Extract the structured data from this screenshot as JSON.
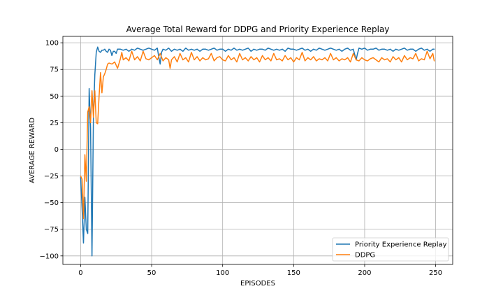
{
  "chart_data": {
    "type": "line",
    "title": "Average Total Reward for DDPG and Priority Experience Replay",
    "xlabel": "EPISODES",
    "ylabel": "AVERAGE REWARD",
    "xlim": [
      -12.5,
      262
    ],
    "ylim": [
      -108,
      106
    ],
    "xticks": [
      0,
      50,
      100,
      150,
      200,
      250
    ],
    "yticks": [
      -100,
      -75,
      -50,
      -25,
      0,
      25,
      50,
      75,
      100
    ],
    "grid": true,
    "legend_position": "lower right",
    "colors": {
      "per": "#1f77b4",
      "ddpg": "#ff7f0e",
      "grid": "#b0b0b0"
    },
    "series": [
      {
        "name": "Priority Experience Replay",
        "color": "#1f77b4",
        "x": [
          0,
          1,
          2,
          3,
          4,
          5,
          6,
          7,
          8,
          9,
          10,
          11,
          12,
          13,
          14,
          15,
          16,
          17,
          18,
          19,
          20,
          21,
          22,
          23,
          24,
          25,
          26,
          28,
          30,
          32,
          34,
          36,
          38,
          40,
          42,
          44,
          46,
          48,
          50,
          52,
          54,
          55,
          56,
          57,
          58,
          60,
          62,
          64,
          66,
          68,
          70,
          72,
          74,
          76,
          78,
          80,
          82,
          84,
          86,
          88,
          90,
          92,
          94,
          96,
          98,
          100,
          102,
          104,
          106,
          108,
          110,
          112,
          114,
          116,
          118,
          120,
          122,
          124,
          126,
          128,
          130,
          132,
          134,
          136,
          138,
          140,
          142,
          144,
          146,
          148,
          150,
          152,
          154,
          156,
          158,
          160,
          162,
          164,
          166,
          168,
          170,
          172,
          174,
          176,
          178,
          180,
          182,
          184,
          186,
          188,
          190,
          192,
          193,
          194,
          195,
          196,
          198,
          200,
          202,
          204,
          206,
          208,
          210,
          212,
          214,
          216,
          218,
          220,
          222,
          224,
          226,
          228,
          230,
          232,
          234,
          236,
          238,
          240,
          242,
          244,
          246,
          248,
          249
        ],
        "y": [
          -26,
          -55,
          -88,
          -45,
          -75,
          -79,
          57,
          20,
          -100,
          30,
          70,
          91,
          96,
          92,
          91,
          93,
          93,
          94,
          92,
          91,
          94,
          93,
          88,
          92,
          92,
          90,
          94,
          94,
          93,
          94,
          92,
          94,
          93,
          95,
          94,
          93,
          94,
          95,
          94,
          93,
          95,
          87,
          80,
          91,
          94,
          93,
          95,
          92,
          94,
          93,
          94,
          92,
          95,
          93,
          94,
          93,
          94,
          92,
          94,
          94,
          93,
          94,
          95,
          93,
          94,
          94,
          92,
          94,
          93,
          95,
          93,
          94,
          93,
          94,
          95,
          92,
          94,
          93,
          94,
          94,
          93,
          95,
          94,
          93,
          94,
          93,
          94,
          92,
          95,
          94,
          94,
          93,
          94,
          95,
          93,
          94,
          92,
          94,
          93,
          95,
          94,
          93,
          94,
          95,
          94,
          93,
          94,
          92,
          94,
          95,
          93,
          94,
          89,
          84,
          90,
          95,
          94,
          95,
          93,
          94,
          94,
          95,
          93,
          94,
          94,
          93,
          94,
          92,
          94,
          93,
          94,
          95,
          93,
          94,
          94,
          92,
          94,
          95,
          93,
          94,
          92,
          94,
          94
        ]
      },
      {
        "name": "DDPG",
        "color": "#ff7f0e",
        "x": [
          0,
          1,
          2,
          3,
          4,
          5,
          6,
          7,
          8,
          9,
          10,
          11,
          12,
          13,
          14,
          15,
          16,
          17,
          18,
          19,
          20,
          22,
          24,
          26,
          28,
          29,
          30,
          32,
          34,
          36,
          38,
          40,
          42,
          44,
          46,
          48,
          50,
          52,
          54,
          56,
          58,
          60,
          62,
          63,
          64,
          66,
          68,
          70,
          72,
          74,
          76,
          78,
          80,
          82,
          84,
          86,
          88,
          90,
          92,
          94,
          96,
          98,
          100,
          102,
          104,
          106,
          108,
          110,
          112,
          114,
          116,
          118,
          120,
          122,
          124,
          126,
          128,
          130,
          132,
          134,
          136,
          138,
          140,
          142,
          144,
          146,
          148,
          150,
          152,
          154,
          156,
          158,
          160,
          162,
          164,
          166,
          168,
          170,
          172,
          174,
          176,
          178,
          180,
          182,
          184,
          186,
          188,
          190,
          192,
          194,
          196,
          198,
          200,
          202,
          204,
          206,
          208,
          210,
          212,
          214,
          216,
          218,
          220,
          222,
          224,
          226,
          228,
          230,
          232,
          234,
          236,
          238,
          240,
          242,
          244,
          246,
          248,
          249
        ],
        "y": [
          -25,
          -28,
          -65,
          -5,
          -30,
          35,
          40,
          25,
          55,
          30,
          55,
          25,
          24,
          50,
          72,
          53,
          68,
          71,
          75,
          80,
          81,
          80,
          82,
          76,
          85,
          91,
          84,
          86,
          83,
          92,
          84,
          87,
          83,
          92,
          85,
          84,
          86,
          88,
          84,
          90,
          83,
          86,
          84,
          76,
          84,
          87,
          82,
          90,
          84,
          86,
          82,
          91,
          84,
          87,
          83,
          86,
          84,
          85,
          90,
          83,
          86,
          87,
          84,
          83,
          88,
          84,
          86,
          82,
          90,
          84,
          86,
          83,
          87,
          84,
          86,
          82,
          88,
          84,
          86,
          83,
          90,
          84,
          85,
          83,
          88,
          84,
          86,
          82,
          86,
          84,
          91,
          83,
          86,
          84,
          87,
          83,
          85,
          84,
          86,
          83,
          90,
          84,
          86,
          83,
          85,
          84,
          86,
          82,
          90,
          84,
          83,
          86,
          84,
          83,
          85,
          86,
          84,
          82,
          86,
          84,
          85,
          82,
          87,
          84,
          86,
          82,
          88,
          84,
          86,
          85,
          90,
          83,
          85,
          84,
          92,
          85,
          90,
          83
        ]
      }
    ]
  }
}
